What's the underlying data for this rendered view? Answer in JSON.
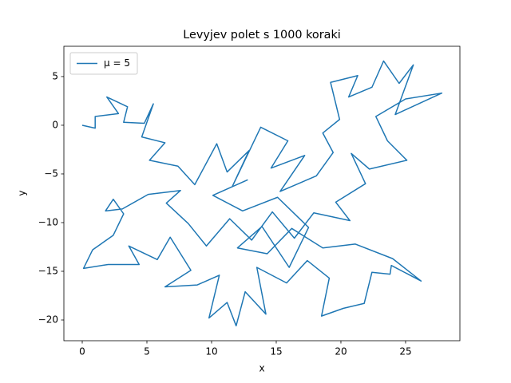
{
  "chart_data": {
    "type": "line",
    "title": "Levyjev polet s 1000 koraki",
    "xlabel": "x",
    "ylabel": "y",
    "x": [
      0,
      1,
      1,
      2.8,
      1.9,
      3.5,
      3.2,
      4.8,
      5.5,
      4.6,
      6.4,
      5.2,
      7.4,
      8.7,
      10.4,
      11.2,
      12.9,
      11.6,
      13.8,
      15.9,
      14.6,
      17.2,
      15.3,
      18.1,
      19.4,
      18.6,
      19.9,
      19.2,
      21.3,
      20.6,
      22.4,
      23.3,
      24.5,
      25.6,
      24.2,
      27.8,
      25.0,
      22.7,
      23.6,
      25.1,
      22.2,
      20.8,
      21.9,
      19.6,
      20.7,
      17.9,
      16.4,
      14.7,
      13.1,
      11.4,
      9.6,
      8.2,
      6.5,
      7.6,
      5.1,
      3.1,
      1.8,
      2.4,
      3.2,
      2.4,
      0.8,
      0.1,
      2.0,
      4.4,
      3.6,
      5.8,
      6.8,
      8.4,
      6.4,
      8.9,
      10.6,
      9.8,
      11.2,
      11.9,
      12.6,
      14.2,
      13.5,
      15.8,
      17.4,
      19.1,
      18.5,
      20.2,
      21.8,
      22.4,
      23.8,
      23.9,
      26.2,
      24.0,
      21.1,
      18.6,
      16.2,
      14.3,
      12.0,
      13.9,
      16.0,
      17.5,
      15.1,
      12.4,
      10.1,
      12.8
    ],
    "series": [
      {
        "name": "μ = 5",
        "color": "#1f77b4",
        "values": [
          0,
          -0.3,
          0.9,
          1.2,
          2.9,
          1.9,
          0.3,
          0.2,
          2.2,
          -1.2,
          -1.8,
          -3.6,
          -4.2,
          -6.1,
          -1.9,
          -4.8,
          -2.6,
          -6.3,
          -0.2,
          -1.6,
          -4.4,
          -3.1,
          -6.8,
          -5.2,
          -2.8,
          -0.8,
          0.6,
          4.4,
          5.1,
          2.9,
          3.9,
          6.6,
          4.3,
          6.2,
          1.1,
          3.3,
          2.7,
          0.9,
          -1.6,
          -3.6,
          -4.5,
          -2.9,
          -6.0,
          -7.9,
          -9.8,
          -9.0,
          -11.6,
          -8.9,
          -11.8,
          -9.6,
          -12.4,
          -10.1,
          -8.0,
          -6.7,
          -7.1,
          -8.6,
          -8.8,
          -7.6,
          -9.1,
          -11.3,
          -12.8,
          -14.7,
          -14.3,
          -14.3,
          -12.4,
          -13.8,
          -11.5,
          -14.9,
          -16.6,
          -16.4,
          -15.4,
          -19.8,
          -18.2,
          -20.6,
          -17.1,
          -19.4,
          -14.6,
          -16.2,
          -13.9,
          -15.7,
          -19.6,
          -18.8,
          -18.3,
          -15.1,
          -15.3,
          -14.4,
          -16.0,
          -13.7,
          -12.2,
          -12.6,
          -10.6,
          -13.2,
          -12.6,
          -10.4,
          -14.6,
          -10.5,
          -7.4,
          -8.8,
          -7.2,
          -5.6
        ]
      }
    ],
    "xlim": [
      -1.42,
      29.2
    ],
    "ylim": [
      -22.13,
      8.11
    ],
    "xticks": [
      0,
      5,
      10,
      15,
      20,
      25
    ],
    "yticks": [
      {
        "value": -20,
        "label": "−20"
      },
      {
        "value": -15,
        "label": "−15"
      },
      {
        "value": -10,
        "label": "−10"
      },
      {
        "value": -5,
        "label": "−5"
      },
      0,
      5
    ],
    "legend": "upper left"
  }
}
